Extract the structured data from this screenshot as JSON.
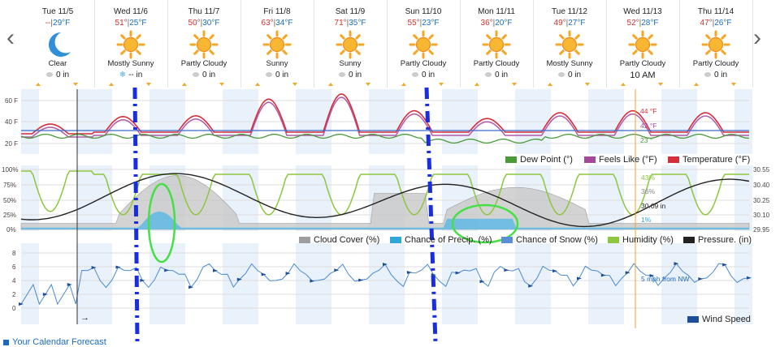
{
  "nav": {
    "prev": "‹",
    "next": "›"
  },
  "days": [
    {
      "date": "Tue 11/5",
      "hi": "--",
      "lo": "29°F",
      "condition": "Clear",
      "precip": "0 in",
      "icon": "moon-icon",
      "precip_icon": "raindrop-icon"
    },
    {
      "date": "Wed 11/6",
      "hi": "51°",
      "lo": "25°F",
      "condition": "Mostly Sunny",
      "precip": "-- in",
      "icon": "sun-icon",
      "precip_icon": "snowflake-icon"
    },
    {
      "date": "Thu 11/7",
      "hi": "50°",
      "lo": "30°F",
      "condition": "Partly Cloudy",
      "precip": "0 in",
      "icon": "sun-icon",
      "precip_icon": "raindrop-icon"
    },
    {
      "date": "Fri 11/8",
      "hi": "63°",
      "lo": "34°F",
      "condition": "Sunny",
      "precip": "0 in",
      "icon": "sun-icon",
      "precip_icon": "raindrop-icon"
    },
    {
      "date": "Sat 11/9",
      "hi": "71°",
      "lo": "35°F",
      "condition": "Sunny",
      "precip": "0 in",
      "icon": "sun-icon",
      "precip_icon": "raindrop-icon"
    },
    {
      "date": "Sun 11/10",
      "hi": "55°",
      "lo": "23°F",
      "condition": "Partly Cloudy",
      "precip": "0 in",
      "icon": "sun-icon",
      "precip_icon": "raindrop-icon"
    },
    {
      "date": "Mon 11/11",
      "hi": "36°",
      "lo": "20°F",
      "condition": "Partly Cloudy",
      "precip": "0 in",
      "icon": "sun-icon",
      "precip_icon": "raindrop-icon"
    },
    {
      "date": "Tue 11/12",
      "hi": "49°",
      "lo": "27°F",
      "condition": "Mostly Sunny",
      "precip": "0 in",
      "icon": "sun-icon",
      "precip_icon": "raindrop-icon"
    },
    {
      "date": "Wed 11/13",
      "hi": "52°",
      "lo": "28°F",
      "condition": "Partly Cloudy",
      "precip": "10 AM",
      "icon": "sun-icon",
      "precip_icon": "none"
    },
    {
      "date": "Thu 11/14",
      "hi": "47°",
      "lo": "26°F",
      "condition": "Partly Cloudy",
      "precip": "0 in",
      "icon": "sun-icon",
      "precip_icon": "raindrop-icon"
    }
  ],
  "sep": "|",
  "temp_chart": {
    "yticks": [
      "60 F",
      "40 F",
      "20 F"
    ],
    "legend": [
      {
        "label": "Dew Point (°)",
        "color": "#4a9a3a"
      },
      {
        "label": "Feels Like (°F)",
        "color": "#a54a9a"
      },
      {
        "label": "Temperature (°F)",
        "color": "#d62d3a"
      }
    ],
    "tooltips": [
      {
        "text": "44 °F",
        "color": "#d62d3a"
      },
      {
        "text": "42 °F",
        "color": "#a54a9a"
      },
      {
        "text": "23 °",
        "color": "#4a9a3a"
      }
    ],
    "colors": {
      "temperature": "#d62d3a",
      "feels_like": "#b25aa8",
      "dew_point": "#4a9a3a",
      "reference": "#3a6cc8"
    }
  },
  "precip_chart": {
    "yticks_left": [
      "100%",
      "75%",
      "50%",
      "25%",
      "0%"
    ],
    "yticks_right": [
      "30.55",
      "30.40",
      "30.25",
      "30.10",
      "29.95"
    ],
    "legend": [
      {
        "label": "Cloud Cover (%)",
        "color": "#9e9e9e"
      },
      {
        "label": "Chance of Precip. (%)",
        "color": "#2ea6d8"
      },
      {
        "label": "Chance of Snow (%)",
        "color": "#5a8fd8"
      },
      {
        "label": "Humidity (%)",
        "color": "#8dc63f"
      },
      {
        "label": "Pressure. (in)",
        "color": "#222222"
      }
    ],
    "tooltips": [
      {
        "text": "43%",
        "color": "#8dc63f"
      },
      {
        "text": "36%",
        "color": "#888888"
      },
      {
        "text": "30.09 in",
        "color": "#222222"
      },
      {
        "text": "1%",
        "color": "#2ea6d8"
      }
    ]
  },
  "wind_chart": {
    "yticks": [
      "8",
      "6",
      "4",
      "2",
      "0"
    ],
    "legend": [
      {
        "label": "Wind Speed",
        "color": "#1f4e99"
      }
    ],
    "tooltip": "5 mph from NW",
    "cursor_arrow": "→"
  },
  "footer_link": "Your Calendar Forecast"
}
